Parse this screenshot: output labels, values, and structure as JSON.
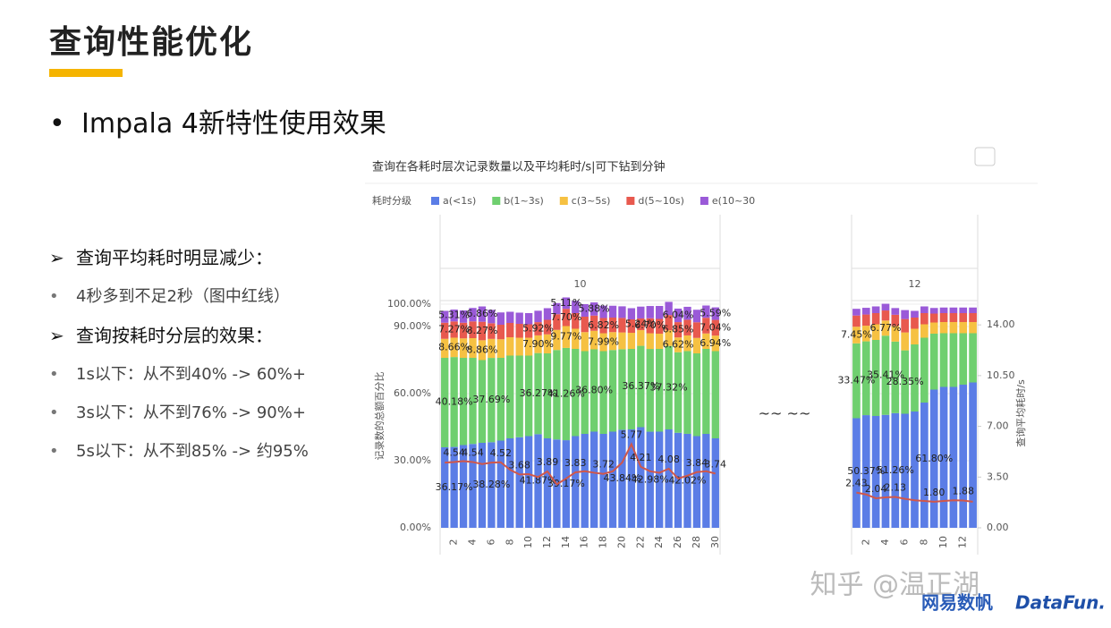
{
  "header": {
    "title": "查询性能优化",
    "bullet": "Impala 4新特性使用效果"
  },
  "notes": [
    {
      "kind": "head",
      "text": "查询平均耗时明显减少："
    },
    {
      "kind": "item",
      "text": "4秒多到不足2秒（图中红线）"
    },
    {
      "kind": "head",
      "text": "查询按耗时分层的效果："
    },
    {
      "kind": "item",
      "text": "1s以下：从不到40% -> 60%+"
    },
    {
      "kind": "item",
      "text": "3s以下：从不到76% -> 90%+"
    },
    {
      "kind": "item",
      "text": "5s以下：从不到85% -> 约95%"
    }
  ],
  "gap_mark": "~~ ~~",
  "watermark": "知乎 @温正湖",
  "logos": [
    "网易数帆",
    "DataFun."
  ],
  "chart_data": {
    "type": "bar",
    "title": "查询在各耗时层次记录数量以及平均耗时/s|可下钻到分钟",
    "legend_title": "耗时分级",
    "ylabel": "记录数的总额百分比",
    "y2label": "查询平均耗时/s",
    "series": [
      {
        "name": "a(<1s)",
        "color": "#5b7de6"
      },
      {
        "name": "b(1~3s)",
        "color": "#6fcf6f"
      },
      {
        "name": "c(3~5s)",
        "color": "#f6c142"
      },
      {
        "name": "d(5~10s)",
        "color": "#e8594e"
      },
      {
        "name": "e(10~30",
        "color": "#9a5ad8"
      }
    ],
    "line_color": "#d0574a",
    "ylim": [
      0,
      100
    ],
    "yticks": [
      {
        "value": 0,
        "label": "0.00%"
      },
      {
        "value": 30,
        "label": "30.00%"
      },
      {
        "value": 60,
        "label": "60.00%"
      },
      {
        "value": 90,
        "label": "90.00%"
      },
      {
        "value": 100,
        "label": "100.00%"
      }
    ],
    "y2lim": [
      0,
      15.43
    ],
    "y2ticks": [
      {
        "value": 0,
        "label": "0.00"
      },
      {
        "value": 3.5,
        "label": "3.50"
      },
      {
        "value": 7,
        "label": "7.00"
      },
      {
        "value": 10.5,
        "label": "10.50"
      },
      {
        "value": 14,
        "label": "14.00"
      }
    ],
    "panels": [
      {
        "label": "10",
        "categories": [
          null,
          2,
          null,
          4,
          null,
          6,
          null,
          8,
          null,
          10,
          null,
          12,
          null,
          14,
          null,
          16,
          null,
          18,
          null,
          20,
          null,
          22,
          null,
          24,
          null,
          26,
          null,
          28,
          null,
          30
        ],
        "values": [
          [
            36,
            36.17,
            37,
            37.5,
            38,
            38.28,
            39,
            40,
            40.5,
            41,
            41.87,
            40,
            39.5,
            39.17,
            41,
            42,
            43,
            42,
            43,
            43.84,
            44,
            45,
            42.98,
            43,
            44,
            42.5,
            42.02,
            41,
            42,
            40
          ],
          [
            40,
            40.18,
            39,
            38.5,
            37,
            37.69,
            37,
            37,
            36.5,
            36,
            36.27,
            38,
            40,
            41.26,
            39,
            37,
            36.8,
            37,
            36.5,
            36,
            36,
            36.37,
            37,
            37,
            37.32,
            36,
            37,
            37,
            38,
            39
          ],
          [
            8.5,
            8.66,
            8.7,
            8.8,
            8.86,
            8.5,
            8.3,
            8.2,
            8,
            8,
            7.9,
            8.5,
            9,
            9.77,
            9,
            8.5,
            8.3,
            7.99,
            8,
            7.5,
            7.2,
            7,
            7,
            6.8,
            7,
            6.62,
            7,
            6.9,
            6.9,
            6.94
          ],
          [
            7.2,
            7.27,
            7,
            7.5,
            8.27,
            7,
            6.5,
            6.4,
            6.2,
            6,
            5.92,
            6.5,
            7,
            7.7,
            7,
            6.9,
            6.8,
            6.82,
            6.5,
            6.5,
            6,
            5.24,
            6.7,
            6.6,
            6.8,
            6.85,
            7,
            7,
            7,
            7.04
          ],
          [
            5.3,
            5.31,
            5.5,
            6,
            6.86,
            6,
            5.5,
            5,
            5,
            5,
            5.1,
            5.2,
            5,
            5.11,
            5.5,
            5.6,
            5.88,
            5.5,
            5.3,
            5.2,
            5,
            5.3,
            5.5,
            5.8,
            5.9,
            6.04,
            5.8,
            5.6,
            5.5,
            5.59
          ]
        ],
        "value_labels": [
          [
            null,
            "36.17%",
            null,
            null,
            null,
            "38.28%",
            null,
            null,
            null,
            null,
            "41.87%",
            null,
            null,
            "39.17%",
            null,
            null,
            null,
            null,
            null,
            "43.84%",
            null,
            null,
            "42.98%",
            null,
            null,
            null,
            "42.02%",
            null,
            null,
            null
          ],
          [
            null,
            "40.18%",
            null,
            null,
            null,
            "37.69%",
            null,
            null,
            null,
            null,
            "36.27%",
            null,
            null,
            "41.26%",
            null,
            null,
            "36.80%",
            null,
            null,
            null,
            null,
            "36.37%",
            null,
            null,
            "37.32%",
            null,
            null,
            null,
            null,
            null
          ],
          [
            null,
            "8.66%",
            null,
            null,
            "8.86%",
            null,
            null,
            null,
            null,
            null,
            "7.90%",
            null,
            null,
            "9.77%",
            null,
            null,
            null,
            "7.99%",
            null,
            null,
            null,
            null,
            null,
            null,
            null,
            "6.62%",
            null,
            null,
            null,
            "6.94%"
          ],
          [
            null,
            "7.27%",
            null,
            null,
            "8.27%",
            null,
            null,
            null,
            null,
            null,
            "5.92%",
            null,
            null,
            "7.70%",
            null,
            null,
            null,
            "6.82%",
            null,
            null,
            null,
            "5.24%",
            "6.70%",
            null,
            null,
            "6.85%",
            null,
            null,
            null,
            "7.04%"
          ],
          [
            null,
            "5.31%",
            null,
            null,
            "6.86%",
            null,
            null,
            null,
            null,
            null,
            null,
            null,
            null,
            "5.11%",
            null,
            null,
            "5.88%",
            null,
            null,
            null,
            null,
            null,
            null,
            null,
            null,
            "6.04%",
            null,
            null,
            null,
            "5.59%"
          ]
        ],
        "line": {
          "axis": "y2",
          "values": [
            4.5,
            4.54,
            4.6,
            4.54,
            4.4,
            4.5,
            4.52,
            4.0,
            3.68,
            3.7,
            3.5,
            3.89,
            3.0,
            3.4,
            3.83,
            3.9,
            3.8,
            3.72,
            3.9,
            4.5,
            5.77,
            4.21,
            3.9,
            3.8,
            4.08,
            3.4,
            3.6,
            3.84,
            3.9,
            3.74
          ],
          "value_labels": [
            null,
            "4.54",
            null,
            "4.54",
            null,
            null,
            "4.52",
            null,
            "3.68",
            null,
            null,
            "3.89",
            null,
            null,
            "3.83",
            null,
            null,
            "3.72",
            null,
            null,
            "5.77",
            "4.21",
            null,
            null,
            "4.08",
            null,
            null,
            "3.84",
            null,
            "3.74"
          ]
        }
      },
      {
        "label": "12",
        "categories": [
          null,
          2,
          null,
          4,
          null,
          6,
          null,
          8,
          null,
          10,
          null,
          12,
          null
        ],
        "values": [
          [
            49,
            50.37,
            50,
            50.5,
            51.26,
            51,
            52,
            56,
            61.8,
            63,
            63,
            64,
            65
          ],
          [
            33.47,
            33,
            34,
            35.41,
            32,
            28.35,
            30,
            29,
            25,
            24,
            24,
            23,
            22
          ],
          [
            7.45,
            7,
            7,
            6.77,
            7,
            8,
            7,
            6,
            5,
            5,
            5,
            5,
            5
          ],
          [
            5,
            5,
            5,
            4.5,
            5,
            6,
            5,
            5,
            4,
            4,
            4,
            4,
            4
          ],
          [
            3,
            3,
            3,
            3,
            3,
            4,
            3,
            3,
            2.5,
            2.5,
            2.5,
            2.5,
            2.5
          ]
        ],
        "value_labels": [
          [
            null,
            "50.37%",
            null,
            null,
            "51.26%",
            null,
            null,
            null,
            "61.80%",
            null,
            null,
            null,
            null
          ],
          [
            "33.47%",
            null,
            null,
            "35.41%",
            null,
            "28.35%",
            null,
            null,
            null,
            null,
            null,
            null,
            null
          ],
          [
            "7.45%",
            null,
            null,
            "6.77%",
            null,
            null,
            null,
            null,
            null,
            null,
            null,
            null,
            null
          ],
          [
            null,
            null,
            null,
            null,
            null,
            null,
            null,
            null,
            null,
            null,
            null,
            null,
            null
          ],
          [
            null,
            null,
            null,
            null,
            null,
            null,
            null,
            null,
            null,
            null,
            null,
            null,
            null
          ]
        ],
        "line": {
          "axis": "y2",
          "values": [
            2.43,
            2.3,
            2.04,
            2.1,
            2.13,
            2.0,
            1.9,
            1.85,
            1.8,
            1.85,
            1.9,
            1.88,
            1.8
          ],
          "value_labels": [
            "2.43",
            null,
            "2.04",
            null,
            "2.13",
            null,
            null,
            null,
            "1.80",
            null,
            null,
            "1.88",
            null
          ]
        }
      }
    ]
  }
}
